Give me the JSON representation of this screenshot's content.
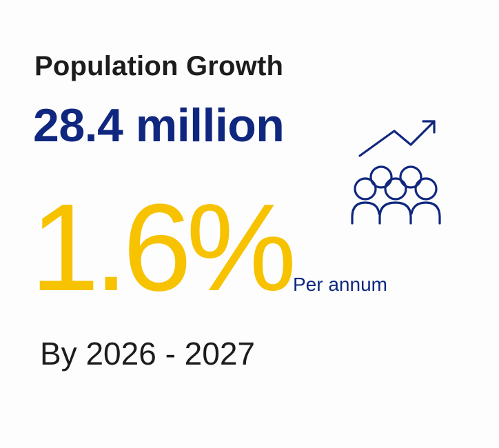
{
  "card": {
    "title": "Population Growth",
    "headline_value": "28.4 million",
    "growth_rate": "1.6%",
    "growth_rate_unit": "Per annum",
    "period": "By 2026 - 2027",
    "icon": "population-growth-icon"
  },
  "colors": {
    "title": "#1c1c1c",
    "headline": "#10277f",
    "rate": "#f7c200",
    "icon": "#10277f"
  }
}
